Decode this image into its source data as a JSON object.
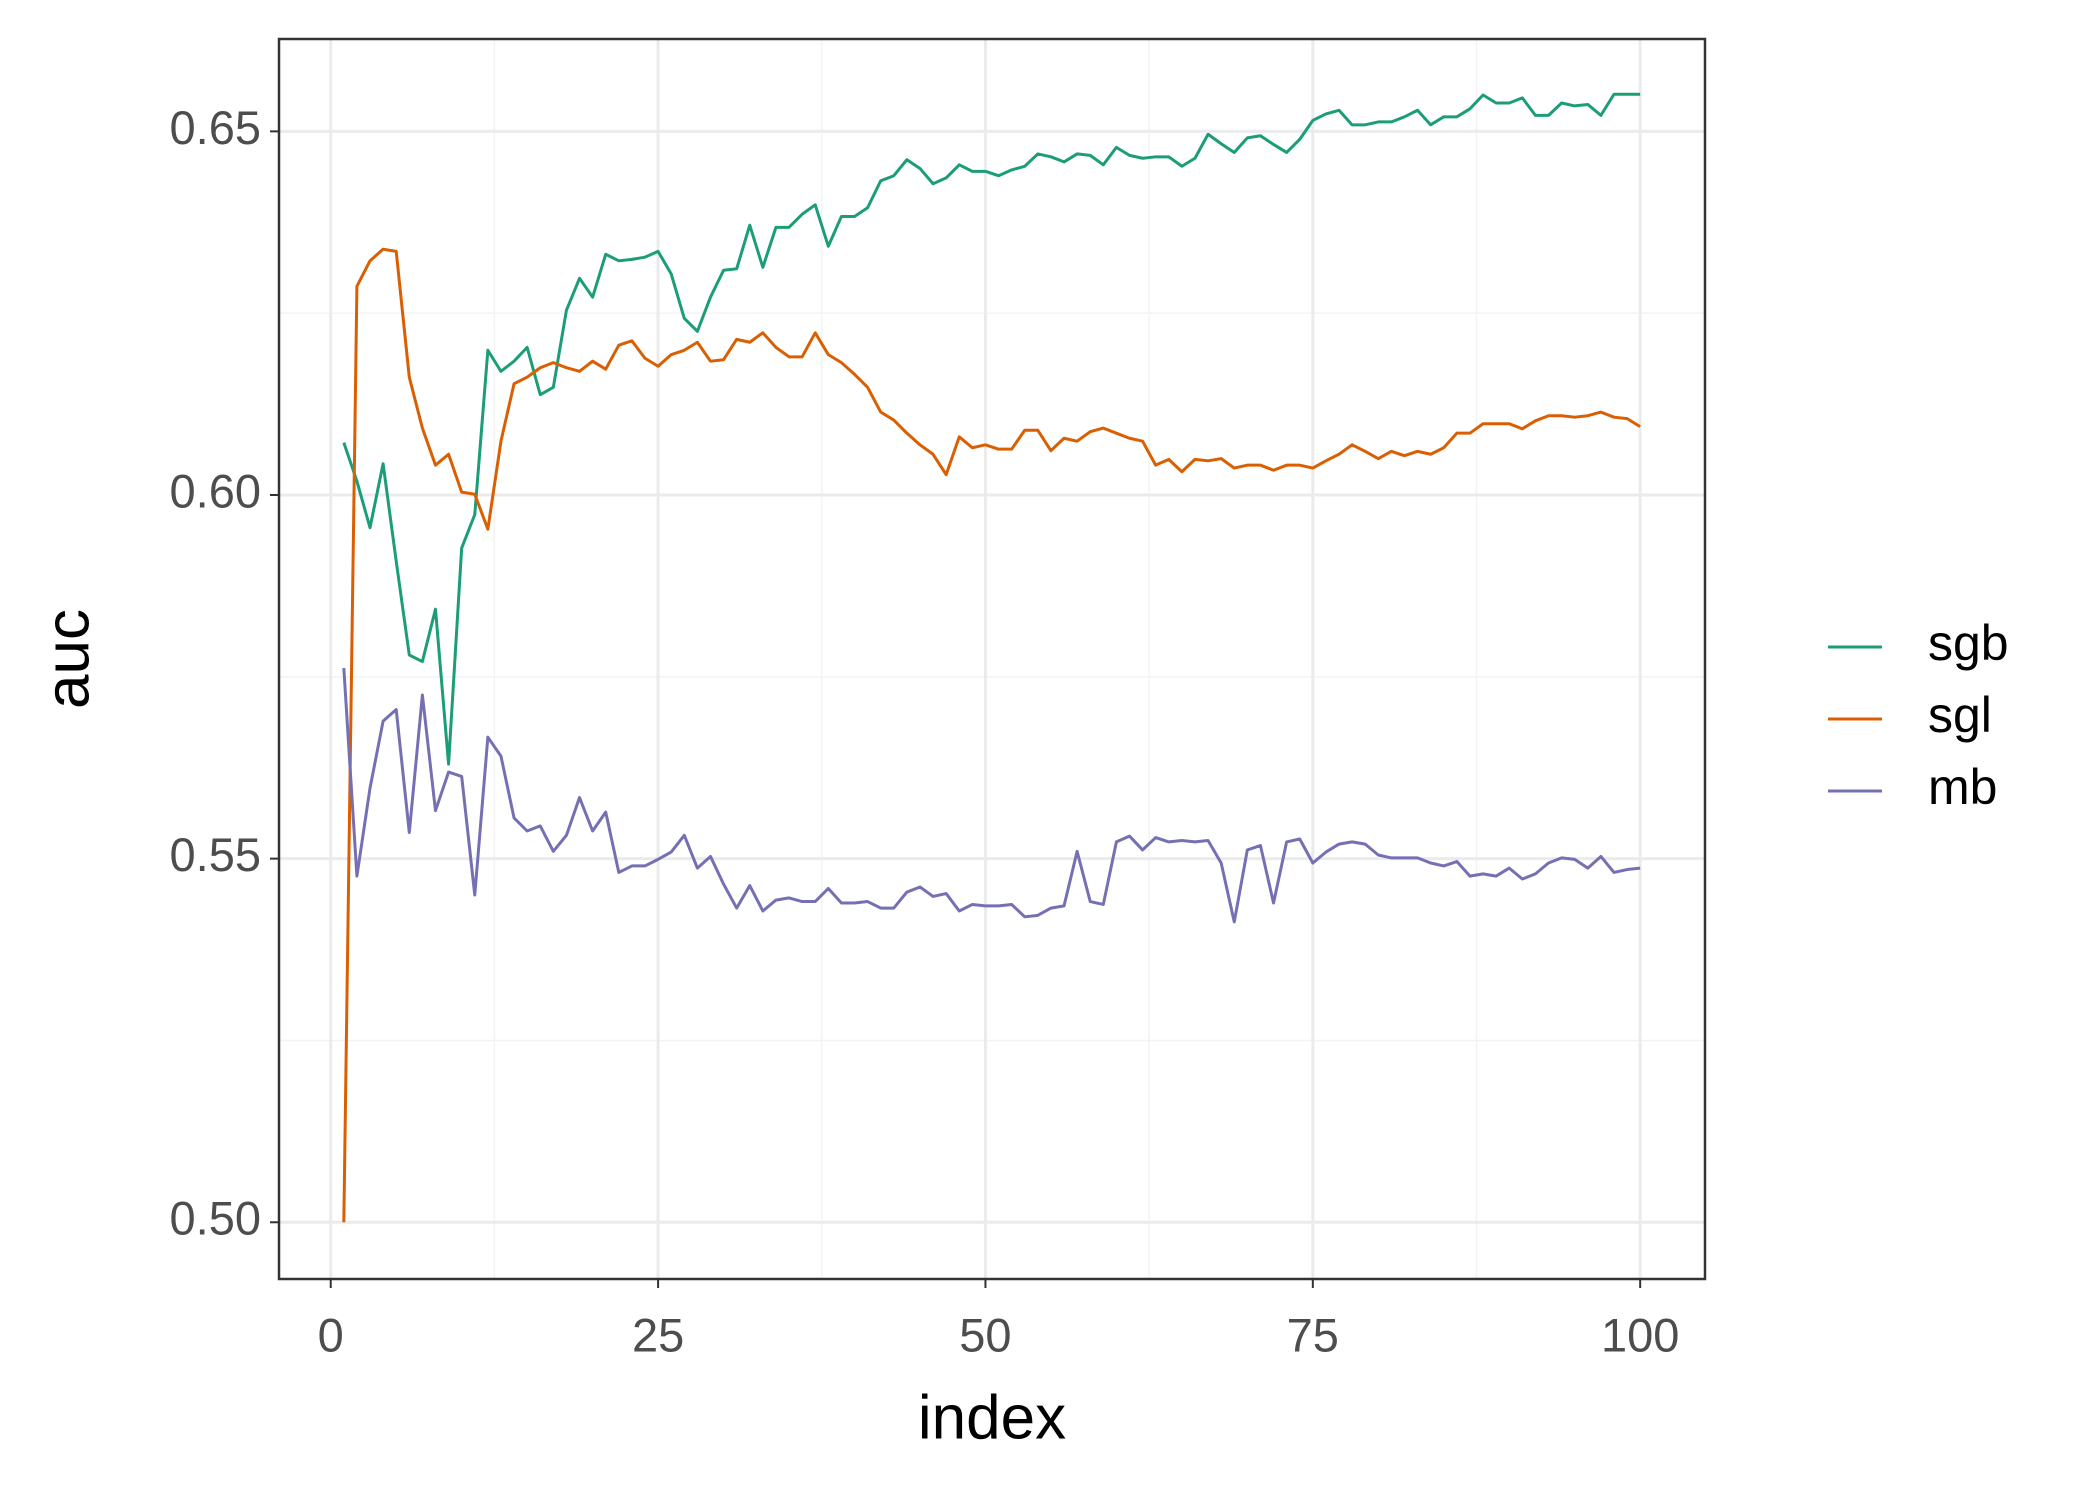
{
  "chart_data": {
    "type": "line",
    "x_label": "index",
    "y_label": "auc",
    "x": [
      1,
      2,
      3,
      4,
      5,
      6,
      7,
      8,
      9,
      10,
      11,
      12,
      13,
      14,
      15,
      16,
      17,
      18,
      19,
      20,
      21,
      22,
      23,
      24,
      25,
      26,
      27,
      28,
      29,
      30,
      31,
      32,
      33,
      34,
      35,
      36,
      37,
      38,
      39,
      40,
      41,
      42,
      43,
      44,
      45,
      46,
      47,
      48,
      49,
      50,
      51,
      52,
      53,
      54,
      55,
      56,
      57,
      58,
      59,
      60,
      61,
      62,
      63,
      64,
      65,
      66,
      67,
      68,
      69,
      70,
      71,
      72,
      73,
      74,
      75,
      76,
      77,
      78,
      79,
      80,
      81,
      82,
      83,
      84,
      85,
      86,
      87,
      88,
      89,
      90,
      91,
      92,
      93,
      94,
      95,
      96,
      97,
      98,
      99,
      100
    ],
    "series": [
      {
        "name": "sgb",
        "color": "#1b9e77",
        "values": [
          0.6072,
          0.6019,
          0.5955,
          0.6043,
          0.5909,
          0.578,
          0.5771,
          0.5843,
          0.563,
          0.5927,
          0.5973,
          0.6199,
          0.617,
          0.6184,
          0.6203,
          0.6138,
          0.6148,
          0.6254,
          0.6298,
          0.6272,
          0.6331,
          0.6322,
          0.6324,
          0.6327,
          0.6335,
          0.6304,
          0.6243,
          0.6225,
          0.6272,
          0.6309,
          0.6311,
          0.6371,
          0.6313,
          0.6368,
          0.6368,
          0.6386,
          0.6399,
          0.6342,
          0.6383,
          0.6383,
          0.6395,
          0.6432,
          0.6439,
          0.6461,
          0.6449,
          0.6428,
          0.6436,
          0.6454,
          0.6445,
          0.6445,
          0.6439,
          0.6447,
          0.6452,
          0.6469,
          0.6465,
          0.6458,
          0.6469,
          0.6467,
          0.6454,
          0.6478,
          0.6467,
          0.6463,
          0.6465,
          0.6465,
          0.6452,
          0.6463,
          0.6496,
          0.6483,
          0.6471,
          0.6491,
          0.6494,
          0.6482,
          0.6471,
          0.6489,
          0.6515,
          0.6524,
          0.6529,
          0.6509,
          0.6509,
          0.6513,
          0.6513,
          0.652,
          0.6529,
          0.6509,
          0.652,
          0.652,
          0.6531,
          0.655,
          0.6539,
          0.6539,
          0.6546,
          0.6522,
          0.6522,
          0.6539,
          0.6535,
          0.6537,
          0.6522,
          0.6551,
          0.6551,
          0.6551
        ]
      },
      {
        "name": "sgl",
        "color": "#d95f02",
        "values": [
          0.5,
          0.6287,
          0.6322,
          0.6338,
          0.6335,
          0.6162,
          0.6092,
          0.6041,
          0.6056,
          0.6004,
          0.6001,
          0.5953,
          0.6074,
          0.6153,
          0.6162,
          0.6175,
          0.6182,
          0.6175,
          0.617,
          0.6184,
          0.6173,
          0.6206,
          0.6212,
          0.6188,
          0.6177,
          0.6193,
          0.6199,
          0.621,
          0.6184,
          0.6186,
          0.6214,
          0.621,
          0.6223,
          0.6203,
          0.619,
          0.619,
          0.6223,
          0.6193,
          0.6182,
          0.6166,
          0.6148,
          0.6114,
          0.6103,
          0.6085,
          0.6069,
          0.6056,
          0.6028,
          0.608,
          0.6065,
          0.6069,
          0.6063,
          0.6063,
          0.6089,
          0.6089,
          0.6061,
          0.6078,
          0.6074,
          0.6087,
          0.6092,
          0.6085,
          0.6078,
          0.6074,
          0.6041,
          0.6049,
          0.6032,
          0.6049,
          0.6047,
          0.605,
          0.6037,
          0.6041,
          0.6041,
          0.6034,
          0.6041,
          0.6041,
          0.6037,
          0.6047,
          0.6056,
          0.6069,
          0.606,
          0.605,
          0.606,
          0.6054,
          0.606,
          0.6056,
          0.6065,
          0.6085,
          0.6085,
          0.6098,
          0.6098,
          0.6098,
          0.6091,
          0.6102,
          0.6109,
          0.6109,
          0.6107,
          0.6109,
          0.6114,
          0.6107,
          0.6105,
          0.6094
        ]
      },
      {
        "name": "mb",
        "color": "#7570b3",
        "values": [
          0.5762,
          0.5476,
          0.5597,
          0.5689,
          0.5705,
          0.5536,
          0.5725,
          0.5566,
          0.5619,
          0.5613,
          0.545,
          0.5667,
          0.5641,
          0.5556,
          0.5538,
          0.5545,
          0.551,
          0.5532,
          0.5584,
          0.5538,
          0.5564,
          0.5481,
          0.549,
          0.549,
          0.5499,
          0.5509,
          0.5532,
          0.5487,
          0.5503,
          0.5465,
          0.5432,
          0.5463,
          0.5428,
          0.5443,
          0.5446,
          0.5441,
          0.5441,
          0.5459,
          0.5439,
          0.5439,
          0.5441,
          0.5432,
          0.5432,
          0.5454,
          0.5461,
          0.5448,
          0.5452,
          0.5428,
          0.5437,
          0.5435,
          0.5435,
          0.5437,
          0.542,
          0.5422,
          0.5432,
          0.5435,
          0.551,
          0.5441,
          0.5437,
          0.5523,
          0.5531,
          0.5512,
          0.5529,
          0.5523,
          0.5525,
          0.5523,
          0.5525,
          0.5494,
          0.5413,
          0.5512,
          0.5518,
          0.5439,
          0.5523,
          0.5527,
          0.5494,
          0.5509,
          0.552,
          0.5523,
          0.552,
          0.5505,
          0.5501,
          0.5501,
          0.5501,
          0.5494,
          0.549,
          0.5496,
          0.5476,
          0.5479,
          0.5476,
          0.5487,
          0.5472,
          0.5479,
          0.5494,
          0.5501,
          0.5499,
          0.5487,
          0.5503,
          0.5481,
          0.5485,
          0.5487
        ]
      }
    ],
    "xlim": [
      -3.95,
      104.95
    ],
    "xticks": [
      0,
      25,
      50,
      75,
      100
    ],
    "ylim": [
      0.4922,
      0.6627
    ],
    "yticks": [
      {
        "value": 0.5,
        "label": "0.50"
      },
      0.55,
      {
        "value": 0.6,
        "label": "0.60"
      },
      0.65
    ],
    "grid": true,
    "legend": "right"
  }
}
